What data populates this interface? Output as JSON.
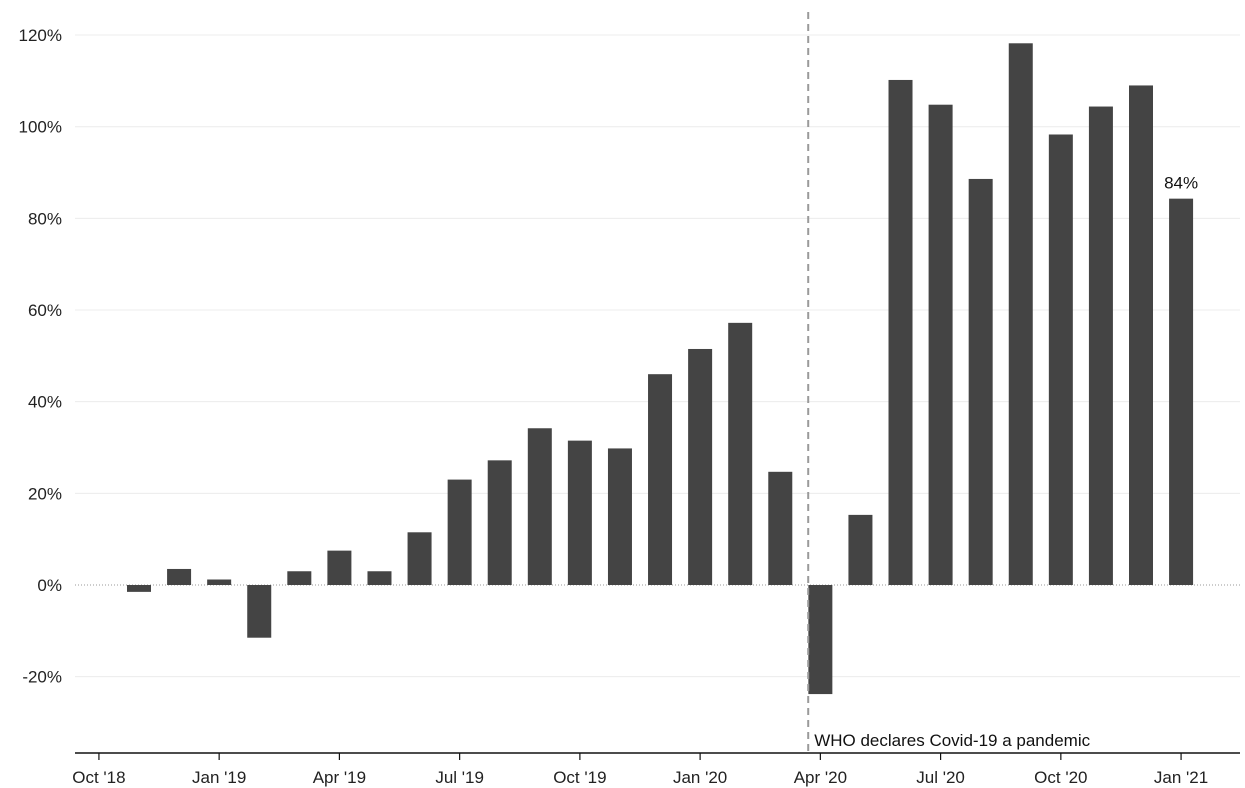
{
  "chart_data": {
    "type": "bar",
    "title": "",
    "xlabel": "",
    "ylabel": "",
    "ylim": [
      -35,
      125
    ],
    "y_ticks": [
      -20,
      0,
      20,
      40,
      60,
      80,
      100,
      120
    ],
    "y_tick_labels": [
      "-20%",
      "0%",
      "20%",
      "40%",
      "60%",
      "80%",
      "100%",
      "120%"
    ],
    "x_tick_labels": [
      "Oct '18",
      "Jan '19",
      "Apr '19",
      "Jul '19",
      "Oct '19",
      "Jan '20",
      "Apr '20",
      "Jul '20",
      "Oct '20",
      "Jan '21"
    ],
    "categories": [
      "2018-11",
      "2018-12",
      "2019-01",
      "2019-02",
      "2019-03",
      "2019-04",
      "2019-05",
      "2019-06",
      "2019-07",
      "2019-08",
      "2019-09",
      "2019-10",
      "2019-11",
      "2019-12",
      "2020-01",
      "2020-02",
      "2020-03",
      "2020-04",
      "2020-05",
      "2020-06",
      "2020-07",
      "2020-08",
      "2020-09",
      "2020-10",
      "2020-11",
      "2020-12",
      "2021-01"
    ],
    "values": [
      -1.5,
      3.5,
      1.2,
      -11.5,
      3,
      7.5,
      3,
      11.5,
      23,
      27.2,
      34.2,
      31.5,
      29.8,
      46,
      51.5,
      57.2,
      24.7,
      -23.8,
      15.3,
      110.2,
      104.8,
      88.6,
      118.2,
      98.3,
      104.4,
      109,
      84.3
    ],
    "series_color": "#444444",
    "grid": true,
    "legend": "none",
    "annotations": {
      "last_value_label": "84%",
      "event_line_label": "WHO declares Covid-19 a pandemic",
      "event_date": "2020-03-11"
    }
  }
}
